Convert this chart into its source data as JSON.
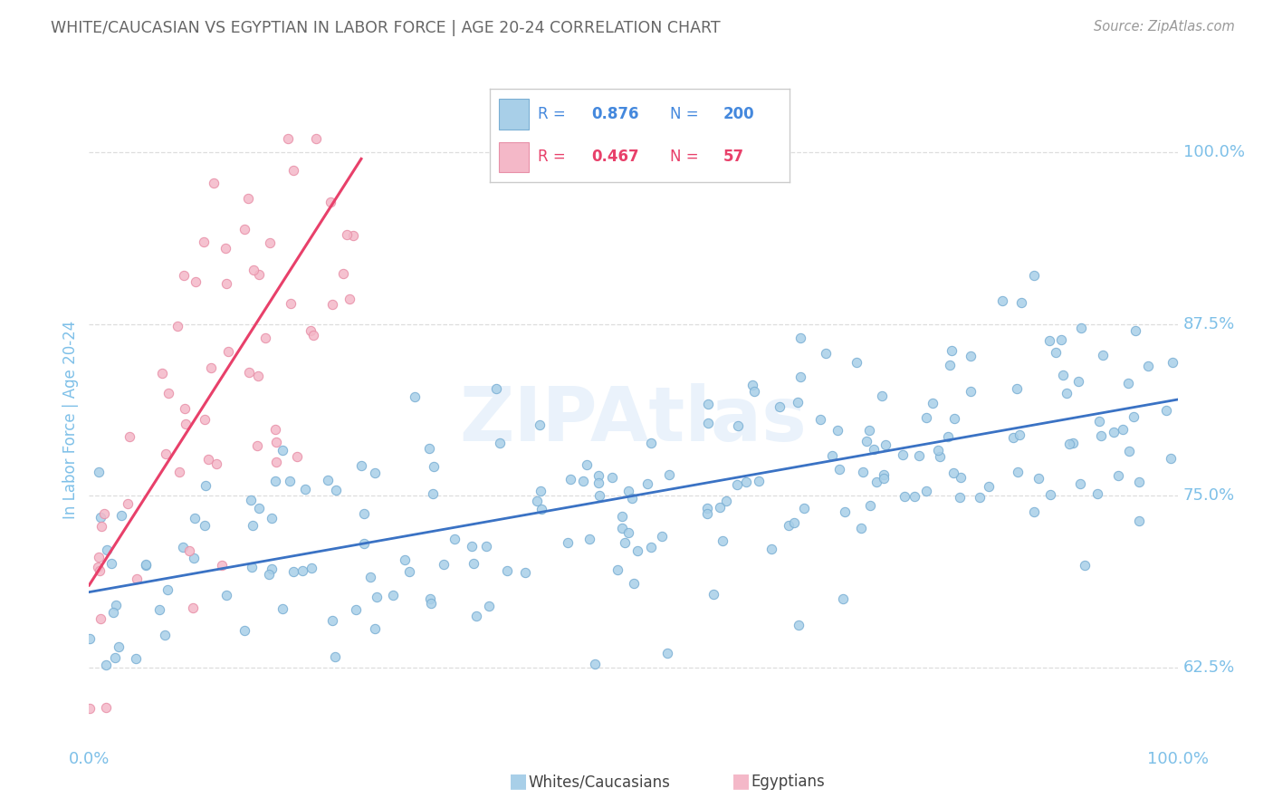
{
  "title": "WHITE/CAUCASIAN VS EGYPTIAN IN LABOR FORCE | AGE 20-24 CORRELATION CHART",
  "source": "Source: ZipAtlas.com",
  "ylabel": "In Labor Force | Age 20-24",
  "blue_R": 0.876,
  "blue_N": 200,
  "pink_R": 0.467,
  "pink_N": 57,
  "legend_blue_label": "Whites/Caucasians",
  "legend_pink_label": "Egyptians",
  "blue_color": "#a8cfe8",
  "pink_color": "#f4b8c8",
  "blue_edge_color": "#7aafd4",
  "pink_edge_color": "#e890a8",
  "blue_line_color": "#3a72c4",
  "pink_line_color": "#e8406a",
  "blue_text_color": "#4488dd",
  "pink_text_color": "#e8406a",
  "watermark": "ZIPAtlas",
  "background_color": "#ffffff",
  "grid_color": "#dddddd",
  "title_color": "#666666",
  "tick_color": "#7ec0e8",
  "source_color": "#999999",
  "xmin": 0,
  "xmax": 100,
  "ymin": 57,
  "ymax": 104,
  "right_yticks": [
    62.5,
    75.0,
    87.5,
    100.0
  ],
  "right_yticklabels": [
    "62.5%",
    "75.0%",
    "87.5%",
    "100.0%"
  ],
  "blue_trend_x": [
    0,
    100
  ],
  "blue_trend_y": [
    68.0,
    82.0
  ],
  "pink_trend_x": [
    0,
    25
  ],
  "pink_trend_y": [
    68.5,
    99.5
  ]
}
